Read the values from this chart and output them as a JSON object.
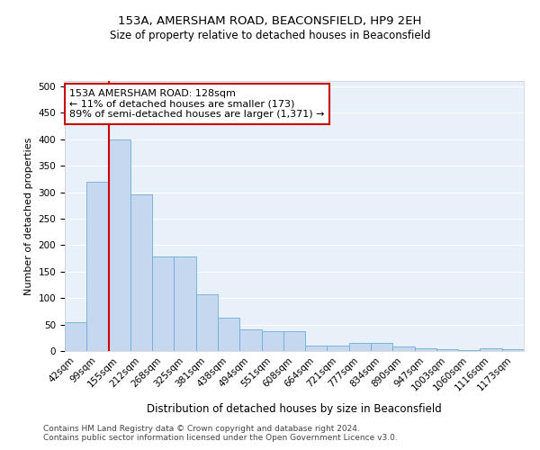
{
  "title_line1": "153A, AMERSHAM ROAD, BEACONSFIELD, HP9 2EH",
  "title_line2": "Size of property relative to detached houses in Beaconsfield",
  "xlabel": "Distribution of detached houses by size in Beaconsfield",
  "ylabel": "Number of detached properties",
  "footer_line1": "Contains HM Land Registry data © Crown copyright and database right 2024.",
  "footer_line2": "Contains public sector information licensed under the Open Government Licence v3.0.",
  "bar_labels": [
    "42sqm",
    "99sqm",
    "155sqm",
    "212sqm",
    "268sqm",
    "325sqm",
    "381sqm",
    "438sqm",
    "494sqm",
    "551sqm",
    "608sqm",
    "664sqm",
    "721sqm",
    "777sqm",
    "834sqm",
    "890sqm",
    "947sqm",
    "1003sqm",
    "1060sqm",
    "1116sqm",
    "1173sqm"
  ],
  "bar_values": [
    55,
    320,
    400,
    295,
    178,
    178,
    107,
    63,
    40,
    37,
    37,
    10,
    10,
    15,
    15,
    8,
    5,
    3,
    1,
    5,
    3
  ],
  "bar_color": "#c5d8f0",
  "bar_edge_color": "#6baed6",
  "background_color": "#e8f0fa",
  "grid_color": "#ffffff",
  "annotation_text": "153A AMERSHAM ROAD: 128sqm\n← 11% of detached houses are smaller (173)\n89% of semi-detached houses are larger (1,371) →",
  "annotation_box_color": "#ffffff",
  "annotation_box_edge": "#cc0000",
  "vline_color": "#cc0000",
  "ylim": [
    0,
    510
  ],
  "yticks": [
    0,
    50,
    100,
    150,
    200,
    250,
    300,
    350,
    400,
    450,
    500
  ],
  "title1_fontsize": 9.5,
  "title2_fontsize": 8.5,
  "xlabel_fontsize": 8.5,
  "ylabel_fontsize": 8,
  "tick_fontsize": 7.5,
  "annotation_fontsize": 8,
  "footer_fontsize": 6.5
}
